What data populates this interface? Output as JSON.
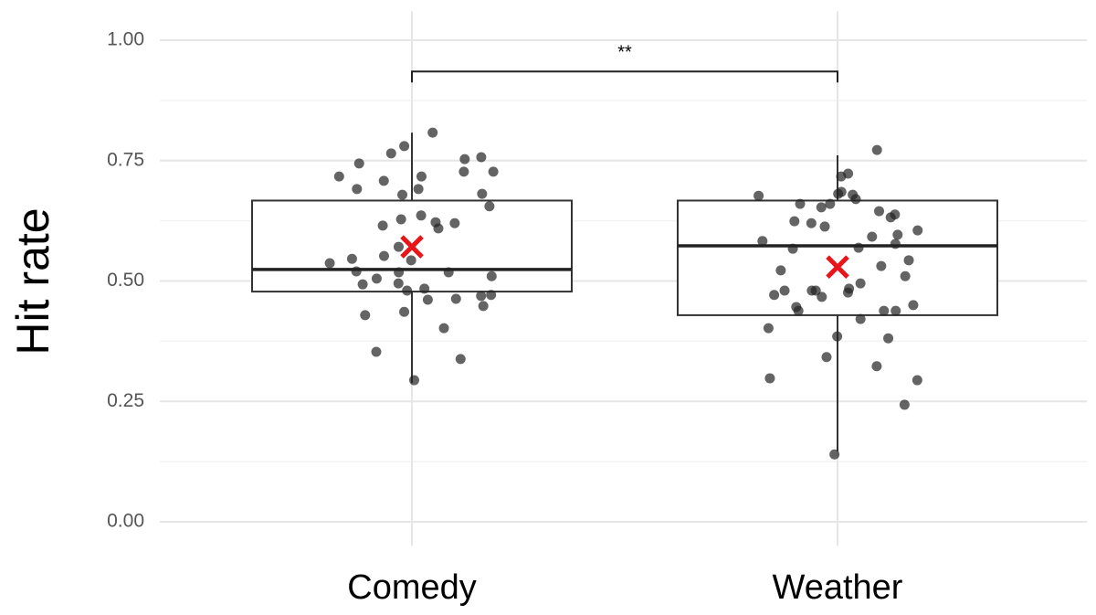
{
  "chart_data": {
    "type": "box",
    "ylabel": "Hit rate",
    "categories": [
      "Comedy",
      "Weather"
    ],
    "ylim": [
      -0.05,
      1.06
    ],
    "yticks": [
      {
        "value": 0,
        "label": "0.00"
      },
      {
        "value": 0.25,
        "label": "0.25"
      },
      {
        "value": 0.5,
        "label": "0.50"
      },
      {
        "value": 0.75,
        "label": "0.75"
      },
      {
        "value": 1,
        "label": "1.00"
      }
    ],
    "minor_yticks": [
      0.125,
      0.375,
      0.625,
      0.875
    ],
    "grid": true,
    "point_color": "#222222",
    "mean_color": "#e8151b",
    "boxes": [
      {
        "whisker_low": 0.288,
        "q1": 0.478,
        "median": 0.524,
        "q3": 0.667,
        "whisker_high": 0.808,
        "mean": 0.571,
        "points": [
          0.757,
          0.717,
          0.717,
          0.765,
          0.78,
          0.808,
          0.691,
          0.708,
          0.691,
          0.655,
          0.753,
          0.744,
          0.727,
          0.727,
          0.679,
          0.681,
          0.628,
          0.622,
          0.615,
          0.62,
          0.636,
          0.609,
          0.571,
          0.546,
          0.552,
          0.543,
          0.537,
          0.52,
          0.518,
          0.51,
          0.518,
          0.505,
          0.495,
          0.493,
          0.484,
          0.471,
          0.469,
          0.48,
          0.463,
          0.461,
          0.448,
          0.436,
          0.429,
          0.402,
          0.338,
          0.353,
          0.294
        ]
      },
      {
        "whisker_low": 0.146,
        "q1": 0.429,
        "median": 0.573,
        "q3": 0.667,
        "whisker_high": 0.761,
        "mean": 0.529,
        "points": [
          0.772,
          0.723,
          0.66,
          0.66,
          0.632,
          0.645,
          0.681,
          0.685,
          0.717,
          0.677,
          0.679,
          0.67,
          0.653,
          0.638,
          0.62,
          0.613,
          0.624,
          0.605,
          0.592,
          0.596,
          0.577,
          0.583,
          0.569,
          0.543,
          0.567,
          0.531,
          0.522,
          0.51,
          0.48,
          0.48,
          0.476,
          0.48,
          0.467,
          0.484,
          0.471,
          0.495,
          0.45,
          0.446,
          0.438,
          0.438,
          0.438,
          0.421,
          0.402,
          0.385,
          0.381,
          0.323,
          0.298,
          0.342,
          0.294,
          0.243,
          0.14
        ]
      }
    ],
    "annotation": {
      "label": "**",
      "between": [
        0,
        1
      ],
      "y": 0.935
    }
  }
}
